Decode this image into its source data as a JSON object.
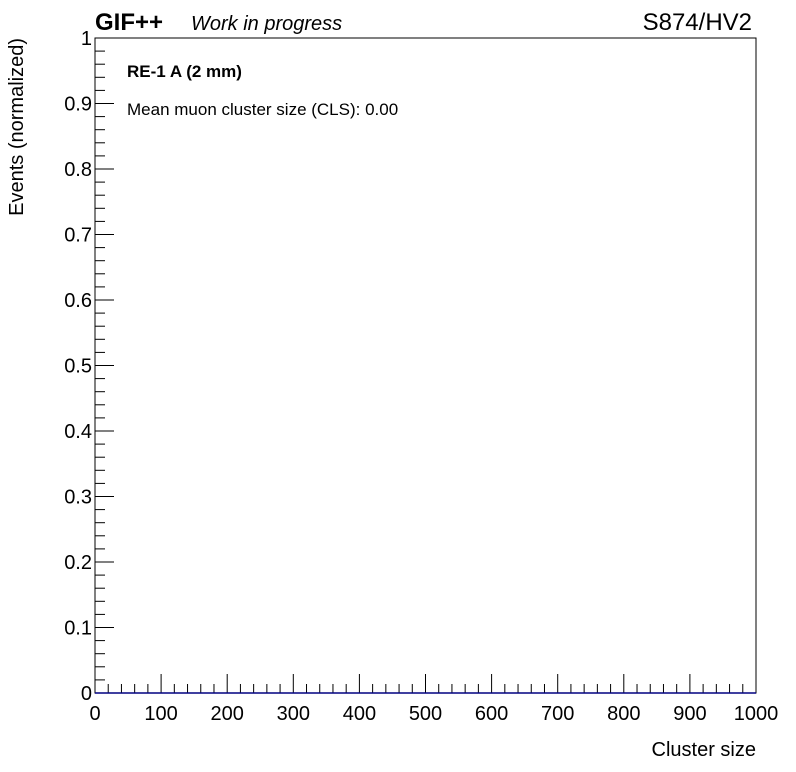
{
  "header": {
    "brand": "GIF++",
    "status": "Work in progress",
    "run_label": "S874/HV2"
  },
  "annotations": {
    "chamber": "RE-1 A (2 mm)",
    "mean_cls": "Mean muon cluster size (CLS): 0.00"
  },
  "chart_data": {
    "type": "bar",
    "title": "",
    "xlabel": "Cluster size",
    "ylabel": "Events (normalized)",
    "xlim": [
      0,
      1000
    ],
    "ylim": [
      0,
      1
    ],
    "x_ticks": [
      "0",
      "100",
      "200",
      "300",
      "400",
      "500",
      "600",
      "700",
      "800",
      "900",
      "1000"
    ],
    "y_ticks": [
      "0",
      "0.1",
      "0.2",
      "0.3",
      "0.4",
      "0.5",
      "0.6",
      "0.7",
      "0.8",
      "0.9",
      "1"
    ],
    "series": [
      {
        "values": [
          0
        ],
        "color": "#000080"
      }
    ],
    "grid": false,
    "legend": "none"
  }
}
